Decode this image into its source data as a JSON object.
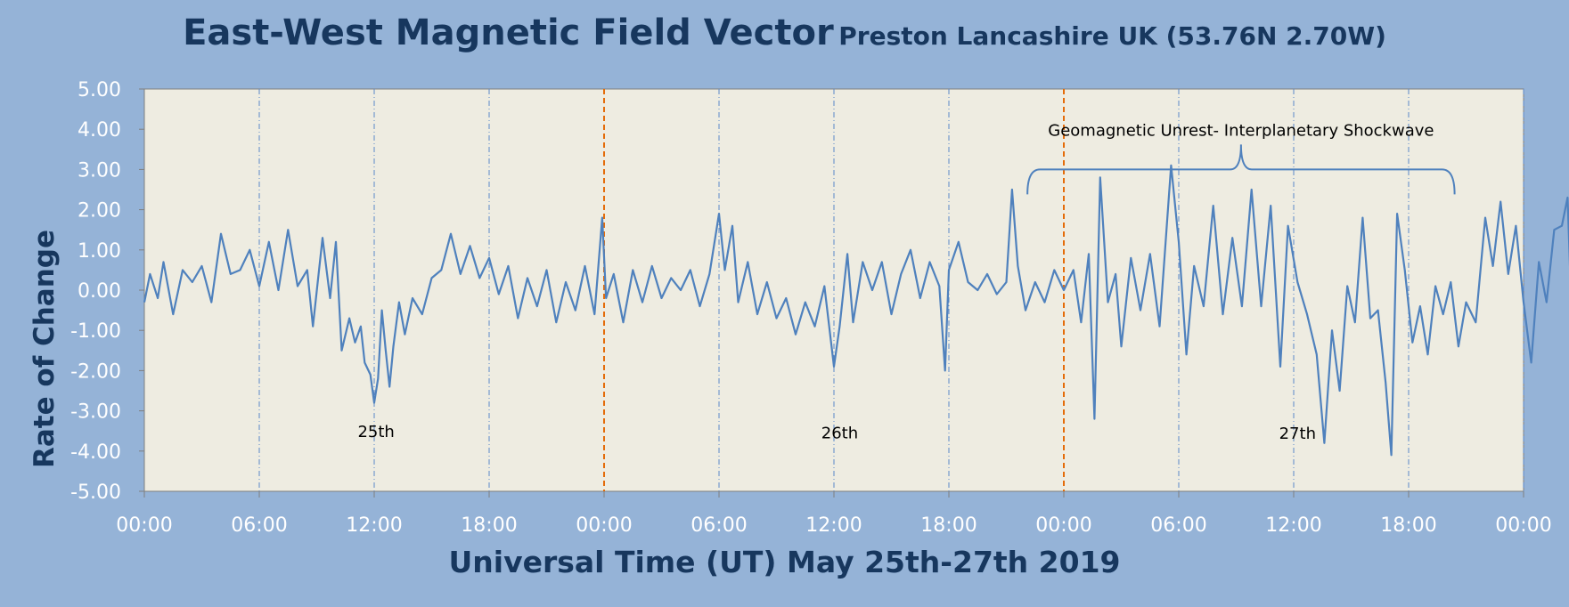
{
  "title": "East-West Magnetic Field Vector",
  "subtitle": "Preston Lancashire UK (53.76N 2.70W)",
  "chart_data": {
    "type": "line",
    "title": "East-West Magnetic Field Vector",
    "subtitle": "Preston Lancashire UK (53.76N 2.70W)",
    "xlabel": "Universal Time (UT) May 25th-27th 2019",
    "ylabel": "Rate of Change",
    "ylim": [
      -5,
      5
    ],
    "xlim_hours": [
      0,
      72
    ],
    "y_ticks": [
      "5.00",
      "4.00",
      "3.00",
      "2.00",
      "1.00",
      "0.00",
      "-1.00",
      "-2.00",
      "-3.00",
      "-4.00",
      "-5.00"
    ],
    "x_ticks": [
      "00:00",
      "06:00",
      "12:00",
      "18:00",
      "00:00",
      "06:00",
      "12:00",
      "18:00",
      "00:00",
      "06:00",
      "12:00",
      "18:00",
      "00:00"
    ],
    "day_labels": [
      {
        "text": "25th",
        "hour": 12.1,
        "y": -3.65
      },
      {
        "text": "26th",
        "hour": 36.3,
        "y": -3.68
      },
      {
        "text": "27th",
        "hour": 60.2,
        "y": -3.7
      }
    ],
    "annotation": {
      "text": "Geomagnetic Unrest-  Interplanetary Shockwave",
      "start_hour": 46.1,
      "end_hour": 68.4,
      "y": 3.0
    },
    "day_boundaries_hours": [
      24,
      48
    ],
    "grid": "vertical dash-dot every 6 hours",
    "line_color": "#4f81bd",
    "boundary_color": "#e46c0a",
    "series": [
      {
        "values": [
          [
            0.0,
            -0.3
          ],
          [
            0.3,
            0.4
          ],
          [
            0.7,
            -0.2
          ],
          [
            1.0,
            0.7
          ],
          [
            1.5,
            -0.6
          ],
          [
            2.0,
            0.5
          ],
          [
            2.5,
            0.2
          ],
          [
            3.0,
            0.6
          ],
          [
            3.5,
            -0.3
          ],
          [
            4.0,
            1.4
          ],
          [
            4.5,
            0.4
          ],
          [
            5.0,
            0.5
          ],
          [
            5.5,
            1.0
          ],
          [
            6.0,
            0.1
          ],
          [
            6.5,
            1.2
          ],
          [
            7.0,
            0.0
          ],
          [
            7.5,
            1.5
          ],
          [
            8.0,
            0.1
          ],
          [
            8.5,
            0.5
          ],
          [
            8.8,
            -0.9
          ],
          [
            9.3,
            1.3
          ],
          [
            9.7,
            -0.2
          ],
          [
            10.0,
            1.2
          ],
          [
            10.3,
            -1.5
          ],
          [
            10.7,
            -0.7
          ],
          [
            11.0,
            -1.3
          ],
          [
            11.3,
            -0.9
          ],
          [
            11.5,
            -1.8
          ],
          [
            11.8,
            -2.1
          ],
          [
            12.0,
            -2.8
          ],
          [
            12.2,
            -2.2
          ],
          [
            12.4,
            -0.5
          ],
          [
            12.6,
            -1.5
          ],
          [
            12.8,
            -2.4
          ],
          [
            13.0,
            -1.4
          ],
          [
            13.3,
            -0.3
          ],
          [
            13.6,
            -1.1
          ],
          [
            14.0,
            -0.2
          ],
          [
            14.5,
            -0.6
          ],
          [
            15.0,
            0.3
          ],
          [
            15.5,
            0.5
          ],
          [
            16.0,
            1.4
          ],
          [
            16.5,
            0.4
          ],
          [
            17.0,
            1.1
          ],
          [
            17.5,
            0.3
          ],
          [
            18.0,
            0.8
          ],
          [
            18.5,
            -0.1
          ],
          [
            19.0,
            0.6
          ],
          [
            19.5,
            -0.7
          ],
          [
            20.0,
            0.3
          ],
          [
            20.5,
            -0.4
          ],
          [
            21.0,
            0.5
          ],
          [
            21.5,
            -0.8
          ],
          [
            22.0,
            0.2
          ],
          [
            22.5,
            -0.5
          ],
          [
            23.0,
            0.6
          ],
          [
            23.5,
            -0.6
          ],
          [
            23.9,
            1.8
          ],
          [
            24.1,
            -0.2
          ],
          [
            24.5,
            0.4
          ],
          [
            25.0,
            -0.8
          ],
          [
            25.5,
            0.5
          ],
          [
            26.0,
            -0.3
          ],
          [
            26.5,
            0.6
          ],
          [
            27.0,
            -0.2
          ],
          [
            27.5,
            0.3
          ],
          [
            28.0,
            0.0
          ],
          [
            28.5,
            0.5
          ],
          [
            29.0,
            -0.4
          ],
          [
            29.5,
            0.4
          ],
          [
            30.0,
            1.9
          ],
          [
            30.3,
            0.5
          ],
          [
            30.7,
            1.6
          ],
          [
            31.0,
            -0.3
          ],
          [
            31.5,
            0.7
          ],
          [
            32.0,
            -0.6
          ],
          [
            32.5,
            0.2
          ],
          [
            33.0,
            -0.7
          ],
          [
            33.5,
            -0.2
          ],
          [
            34.0,
            -1.1
          ],
          [
            34.5,
            -0.3
          ],
          [
            35.0,
            -0.9
          ],
          [
            35.5,
            0.1
          ],
          [
            36.0,
            -1.9
          ],
          [
            36.3,
            -0.9
          ],
          [
            36.7,
            0.9
          ],
          [
            37.0,
            -0.8
          ],
          [
            37.5,
            0.7
          ],
          [
            38.0,
            0.0
          ],
          [
            38.5,
            0.7
          ],
          [
            39.0,
            -0.6
          ],
          [
            39.5,
            0.4
          ],
          [
            40.0,
            1.0
          ],
          [
            40.5,
            -0.2
          ],
          [
            41.0,
            0.7
          ],
          [
            41.5,
            0.1
          ],
          [
            41.8,
            -2.0
          ],
          [
            42.0,
            0.5
          ],
          [
            42.5,
            1.2
          ],
          [
            43.0,
            0.2
          ],
          [
            43.5,
            0.0
          ],
          [
            44.0,
            0.4
          ],
          [
            44.5,
            -0.1
          ],
          [
            45.0,
            0.2
          ],
          [
            45.3,
            2.5
          ],
          [
            45.6,
            0.6
          ],
          [
            46.0,
            -0.5
          ],
          [
            46.5,
            0.2
          ],
          [
            47.0,
            -0.3
          ],
          [
            47.5,
            0.5
          ],
          [
            48.0,
            0.0
          ],
          [
            48.5,
            0.5
          ],
          [
            48.9,
            -0.8
          ],
          [
            49.3,
            0.9
          ],
          [
            49.6,
            -3.2
          ],
          [
            49.9,
            2.8
          ],
          [
            50.3,
            -0.3
          ],
          [
            50.7,
            0.4
          ],
          [
            51.0,
            -1.4
          ],
          [
            51.5,
            0.8
          ],
          [
            52.0,
            -0.5
          ],
          [
            52.5,
            0.9
          ],
          [
            53.0,
            -0.9
          ],
          [
            53.6,
            3.1
          ],
          [
            54.0,
            1.2
          ],
          [
            54.4,
            -1.6
          ],
          [
            54.8,
            0.6
          ],
          [
            55.3,
            -0.4
          ],
          [
            55.8,
            2.1
          ],
          [
            56.3,
            -0.6
          ],
          [
            56.8,
            1.3
          ],
          [
            57.3,
            -0.4
          ],
          [
            57.8,
            2.5
          ],
          [
            58.3,
            -0.4
          ],
          [
            58.8,
            2.1
          ],
          [
            59.3,
            -1.9
          ],
          [
            59.7,
            1.6
          ],
          [
            60.2,
            0.2
          ],
          [
            60.7,
            -0.6
          ],
          [
            61.2,
            -1.6
          ],
          [
            61.6,
            -3.8
          ],
          [
            62.0,
            -1.0
          ],
          [
            62.4,
            -2.5
          ],
          [
            62.8,
            0.1
          ],
          [
            63.2,
            -0.8
          ],
          [
            63.6,
            1.8
          ],
          [
            64.0,
            -0.7
          ],
          [
            64.4,
            -0.5
          ],
          [
            64.8,
            -2.3
          ],
          [
            65.1,
            -4.1
          ],
          [
            65.4,
            1.9
          ],
          [
            65.8,
            0.5
          ],
          [
            66.2,
            -1.3
          ],
          [
            66.6,
            -0.4
          ],
          [
            67.0,
            -1.6
          ],
          [
            67.4,
            0.1
          ],
          [
            67.8,
            -0.6
          ],
          [
            68.2,
            0.2
          ],
          [
            68.6,
            -1.4
          ],
          [
            69.0,
            -0.3
          ],
          [
            69.5,
            -0.8
          ],
          [
            70.0,
            1.8
          ],
          [
            70.4,
            0.6
          ],
          [
            70.8,
            2.2
          ],
          [
            71.2,
            0.4
          ],
          [
            71.6,
            1.6
          ],
          [
            72.0,
            -0.3
          ],
          [
            72.4,
            -1.8
          ],
          [
            72.8,
            0.7
          ],
          [
            73.2,
            -0.3
          ],
          [
            73.6,
            1.5
          ],
          [
            74.0,
            1.6
          ],
          [
            74.3,
            2.3
          ],
          [
            74.5,
            -0.5
          ]
        ]
      }
    ]
  }
}
